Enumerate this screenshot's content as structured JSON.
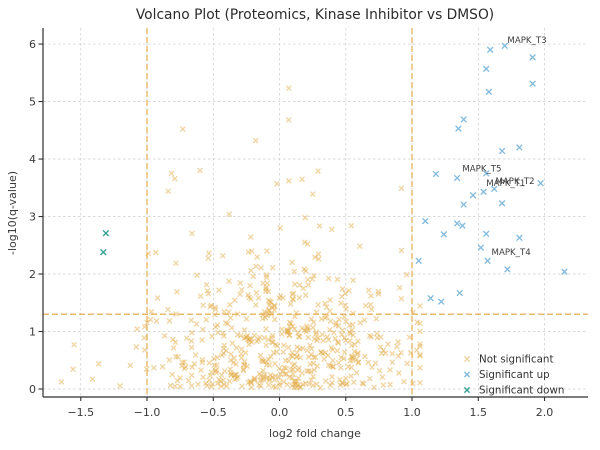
{
  "figure": {
    "title": "Volcano Plot (Proteomics, Kinase Inhibitor vs DMSO)"
  },
  "chart_data": {
    "type": "scatter",
    "title": "Volcano Plot (Proteomics, Kinase Inhibitor vs DMSO)",
    "xlabel": "log2 fold change",
    "ylabel": "-log10(q-value)",
    "xlim": [
      -1.785,
      2.328
    ],
    "ylim": [
      -0.139,
      6.279
    ],
    "grid": {
      "visible": true,
      "style": "dashed",
      "color": "#cbcbcb"
    },
    "background": "#ffffff",
    "x_ticks": {
      "values": [
        -1.5,
        -1.0,
        -0.5,
        0.0,
        0.5,
        1.0,
        1.5,
        2.0
      ],
      "labels": [
        "−1.5",
        "−1.0",
        "−0.5",
        "0.0",
        "0.5",
        "1.0",
        "1.5",
        "2.0"
      ]
    },
    "y_ticks": {
      "values": [
        0,
        1,
        2,
        3,
        4,
        5,
        6
      ],
      "labels": [
        "0",
        "1",
        "2",
        "3",
        "4",
        "5",
        "6"
      ]
    },
    "thresholds": {
      "x_lines": [
        -1.0,
        1.0
      ],
      "y_line": 1.301,
      "color": "#e0a43b",
      "style": "dashed"
    },
    "series": [
      {
        "name": "Not significant",
        "marker": "x",
        "color": "#e3ab45",
        "opacity": 0.5,
        "marker_size": 2.4,
        "points": [
          [
            -0.73,
            4.52
          ],
          [
            -0.18,
            4.32
          ],
          [
            0.07,
            4.68
          ],
          [
            0.07,
            5.23
          ],
          [
            -0.6,
            3.8
          ],
          [
            -0.79,
            3.66
          ],
          [
            0.29,
            3.79
          ],
          [
            -0.84,
            3.44
          ],
          [
            0.07,
            3.62
          ],
          [
            0.17,
            3.65
          ],
          [
            -0.02,
            3.57
          ],
          [
            0.25,
            3.39
          ],
          [
            0.92,
            3.49
          ],
          [
            0.92,
            2.41
          ],
          [
            0.96,
            1.99
          ],
          [
            0.92,
            1.57
          ],
          [
            1.04,
            1.16
          ],
          [
            -1.55,
            0.77
          ]
        ],
        "cloud": {
          "comment": "dense unlabeled background cloud, values not individually readable",
          "count": 560,
          "seed": 20,
          "x_mean": 0.03,
          "x_sigma": 0.5,
          "x_clip": [
            -1.66,
            1.06
          ],
          "core_frac": 0.7,
          "core_sigma": 0.62,
          "tail_base": 0.85,
          "tail_sigma": 0.85,
          "y_clip": [
            0.02,
            4.45
          ],
          "x_limit_above_line": 0.99
        }
      },
      {
        "name": "Significant up",
        "marker": "x",
        "color": "#6fb0d8",
        "opacity": 0.85,
        "marker_size": 2.8,
        "points": [
          [
            1.59,
            5.9
          ],
          [
            1.7,
            5.97
          ],
          [
            1.91,
            5.77
          ],
          [
            1.56,
            5.57
          ],
          [
            1.91,
            5.31
          ],
          [
            1.58,
            5.17
          ],
          [
            1.39,
            4.69
          ],
          [
            1.35,
            4.53
          ],
          [
            1.68,
            4.14
          ],
          [
            1.81,
            4.2
          ],
          [
            1.18,
            3.74
          ],
          [
            1.34,
            3.67
          ],
          [
            1.56,
            3.75
          ],
          [
            1.54,
            3.43
          ],
          [
            1.62,
            3.48
          ],
          [
            1.97,
            3.58
          ],
          [
            1.46,
            3.37
          ],
          [
            1.39,
            3.21
          ],
          [
            1.68,
            3.23
          ],
          [
            1.1,
            2.92
          ],
          [
            1.24,
            2.69
          ],
          [
            1.34,
            2.88
          ],
          [
            1.38,
            2.84
          ],
          [
            1.56,
            2.7
          ],
          [
            1.81,
            2.63
          ],
          [
            1.52,
            2.46
          ],
          [
            1.05,
            2.23
          ],
          [
            1.57,
            2.23
          ],
          [
            1.72,
            2.08
          ],
          [
            2.15,
            2.04
          ],
          [
            1.14,
            1.58
          ],
          [
            1.22,
            1.52
          ],
          [
            1.36,
            1.67
          ]
        ]
      },
      {
        "name": "Significant down",
        "marker": "x",
        "color": "#2a9d8f",
        "opacity": 0.95,
        "marker_size": 2.8,
        "points": [
          [
            -1.31,
            2.71
          ],
          [
            -1.33,
            2.38
          ]
        ]
      }
    ],
    "annotations": [
      {
        "label": "MAPK_T3",
        "x": 1.72,
        "y": 6.02
      },
      {
        "label": "MAPK_T5",
        "x": 1.38,
        "y": 3.78
      },
      {
        "label": "MAPK_T1",
        "x": 1.56,
        "y": 3.53
      },
      {
        "label": "MAPK_T2",
        "x": 1.63,
        "y": 3.57
      },
      {
        "label": "MAPK_T4",
        "x": 1.6,
        "y": 2.33
      }
    ],
    "legend": {
      "position": "lower right",
      "frame": false,
      "items": [
        "Not significant",
        "Significant up",
        "Significant down"
      ]
    }
  }
}
